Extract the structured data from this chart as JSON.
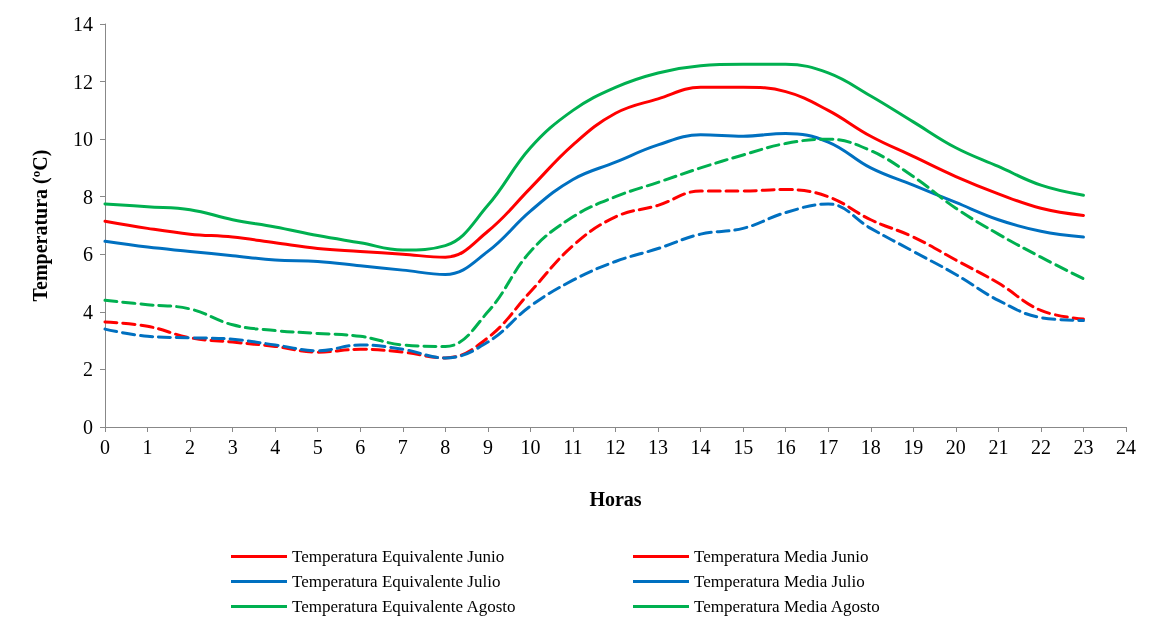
{
  "chart_data": {
    "type": "line",
    "xlabel": "Horas",
    "ylabel": "Temperatura (ºC)",
    "x": [
      0,
      1,
      2,
      3,
      4,
      5,
      6,
      7,
      8,
      9,
      10,
      11,
      12,
      13,
      14,
      15,
      16,
      17,
      18,
      19,
      20,
      21,
      22,
      23
    ],
    "xlim": [
      0,
      24
    ],
    "xticks": [
      0,
      1,
      2,
      3,
      4,
      5,
      6,
      7,
      8,
      9,
      10,
      11,
      12,
      13,
      14,
      15,
      16,
      17,
      18,
      19,
      20,
      21,
      22,
      23,
      24
    ],
    "ylim": [
      0,
      14
    ],
    "yticks": [
      0,
      2,
      4,
      6,
      8,
      10,
      12,
      14
    ],
    "grid": false,
    "legend": "bottom",
    "marker": "none",
    "series": [
      {
        "name": "Temperatura Equivalente Junio",
        "color": "#ff0000",
        "line_style": "dashed",
        "values": [
          3.65,
          3.5,
          3.1,
          2.95,
          2.8,
          2.6,
          2.7,
          2.6,
          2.4,
          3.1,
          4.7,
          6.3,
          7.3,
          7.7,
          8.2,
          8.2,
          8.25,
          8.0,
          7.2,
          6.6,
          5.8,
          5.0,
          4.05,
          3.75
        ]
      },
      {
        "name": "Temperatura Media Junio",
        "color": "#ff0000",
        "line_style": "solid",
        "values": [
          7.15,
          6.9,
          6.7,
          6.6,
          6.4,
          6.2,
          6.1,
          6.0,
          5.9,
          6.8,
          8.3,
          9.8,
          10.9,
          11.4,
          11.8,
          11.8,
          11.65,
          11.0,
          10.1,
          9.4,
          8.7,
          8.1,
          7.6,
          7.35
        ]
      },
      {
        "name": "Temperatura Equivalente Julio",
        "color": "#0070c0",
        "line_style": "dashed",
        "values": [
          3.4,
          3.15,
          3.1,
          3.05,
          2.85,
          2.65,
          2.85,
          2.7,
          2.4,
          2.95,
          4.2,
          5.1,
          5.75,
          6.2,
          6.7,
          6.9,
          7.45,
          7.75,
          6.9,
          6.1,
          5.3,
          4.4,
          3.8,
          3.7
        ]
      },
      {
        "name": "Temperatura Media Julio",
        "color": "#0070c0",
        "line_style": "solid",
        "values": [
          6.45,
          6.25,
          6.1,
          5.95,
          5.8,
          5.75,
          5.6,
          5.45,
          5.3,
          6.1,
          7.5,
          8.6,
          9.2,
          9.8,
          10.15,
          10.1,
          10.2,
          9.9,
          9.0,
          8.4,
          7.8,
          7.2,
          6.8,
          6.6
        ]
      },
      {
        "name": "Temperatura Equivalente Agosto",
        "color": "#00b050",
        "line_style": "dashed",
        "values": [
          4.4,
          4.25,
          4.1,
          3.55,
          3.35,
          3.25,
          3.15,
          2.85,
          2.8,
          4.0,
          6.1,
          7.3,
          8.0,
          8.5,
          9.0,
          9.45,
          9.85,
          10.0,
          9.6,
          8.7,
          7.6,
          6.7,
          5.9,
          5.15
        ]
      },
      {
        "name": "Temperatura Media Agosto",
        "color": "#00b050",
        "line_style": "solid",
        "values": [
          7.75,
          7.65,
          7.55,
          7.2,
          6.95,
          6.65,
          6.4,
          6.15,
          6.3,
          7.7,
          9.7,
          11.0,
          11.8,
          12.3,
          12.55,
          12.6,
          12.6,
          12.3,
          11.5,
          10.6,
          9.7,
          9.05,
          8.4,
          8.05
        ]
      }
    ]
  }
}
